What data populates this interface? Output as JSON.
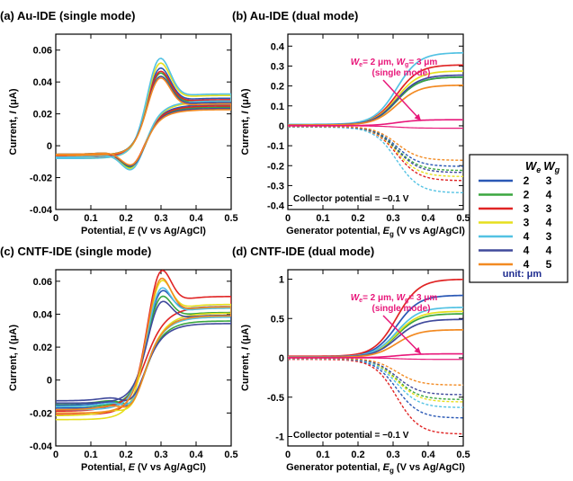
{
  "colors": {
    "series": [
      "#2a58b5",
      "#3aa63f",
      "#e02424",
      "#e6df1e",
      "#53c2e3",
      "#404a9c",
      "#f28a22"
    ],
    "single": "#e8177a",
    "annotation": "#e8177a",
    "unit": "#1d2b8f"
  },
  "legend": {
    "header_we": "W",
    "header_we_sub": "e",
    "header_wg": "W",
    "header_wg_sub": "g",
    "rows": [
      {
        "we": "2",
        "wg": "3"
      },
      {
        "we": "2",
        "wg": "4"
      },
      {
        "we": "3",
        "wg": "3"
      },
      {
        "we": "3",
        "wg": "4"
      },
      {
        "we": "4",
        "wg": "3"
      },
      {
        "we": "4",
        "wg": "4"
      },
      {
        "we": "4",
        "wg": "5"
      }
    ],
    "unit": "unit: μm"
  },
  "chart_data": [
    {
      "id": "a",
      "type": "line",
      "title": "(a) Au-IDE (single mode)",
      "xlabel_pre": "Potential, ",
      "xlabel_italic": "E",
      "xlabel_post": " (V vs Ag/AgCl)",
      "ylabel_pre": "Current, ",
      "ylabel_italic": "I",
      "ylabel_post": " (μA)",
      "xlim": [
        0,
        0.5
      ],
      "ylim": [
        -0.04,
        0.07
      ],
      "xticks": [
        0,
        0.1,
        0.2,
        0.3,
        0.4,
        0.5
      ],
      "xtick_labels": [
        "0",
        "0.1",
        "0.2",
        "0.3",
        "0.4",
        "0.5"
      ],
      "yticks": [
        -0.04,
        -0.02,
        0,
        0.02,
        0.04,
        0.06
      ],
      "ytick_labels": [
        "-0.04",
        "-0.02",
        "0",
        "0.02",
        "0.04",
        "0.06"
      ],
      "series": [
        {
          "color_index": 0,
          "ipa": 0.047,
          "ipc": -0.023,
          "base": -0.007,
          "end": 0.033
        },
        {
          "color_index": 1,
          "ipa": 0.044,
          "ipc": -0.022,
          "base": -0.006,
          "end": 0.031
        },
        {
          "color_index": 2,
          "ipa": 0.045,
          "ipc": -0.021,
          "base": -0.007,
          "end": 0.032
        },
        {
          "color_index": 3,
          "ipa": 0.05,
          "ipc": -0.024,
          "base": -0.008,
          "end": 0.035
        },
        {
          "color_index": 4,
          "ipa": 0.053,
          "ipc": -0.025,
          "base": -0.008,
          "end": 0.036
        },
        {
          "color_index": 5,
          "ipa": 0.042,
          "ipc": -0.021,
          "base": -0.006,
          "end": 0.03
        },
        {
          "color_index": 6,
          "ipa": 0.041,
          "ipc": -0.02,
          "base": -0.006,
          "end": 0.029
        }
      ]
    },
    {
      "id": "b",
      "type": "line",
      "title": "(b) Au-IDE (dual mode)",
      "xlabel_pre": "Generator potential, ",
      "xlabel_italic": "E",
      "xlabel_sub": "g",
      "xlabel_post": " (V vs Ag/AgCl)",
      "ylabel_pre": "Current, ",
      "ylabel_italic": "I",
      "ylabel_post": " (μA)",
      "xlim": [
        0,
        0.5
      ],
      "ylim": [
        -0.42,
        0.46
      ],
      "xticks": [
        0,
        0.1,
        0.2,
        0.3,
        0.4,
        0.5
      ],
      "xtick_labels": [
        "0",
        "0.1",
        "0.2",
        "0.3",
        "0.4",
        "0.5"
      ],
      "yticks": [
        -0.4,
        -0.3,
        -0.2,
        -0.1,
        0,
        0.1,
        0.2,
        0.3,
        0.4
      ],
      "ytick_labels": [
        "-0.4",
        "-0.3",
        "-0.2",
        "-0.1",
        "0",
        "0.1",
        "0.2",
        "0.3",
        "0.4"
      ],
      "note": "Collector potential = −0.1 V",
      "annotation": {
        "line1a": "W",
        "line1a_sub": "e",
        "line1b": "= 2 μm, ",
        "line1c": "W",
        "line1c_sub": "g",
        "line1d": "= 3 μm",
        "line2": "(single mode)"
      },
      "series": [
        {
          "color_index": 0,
          "gen": 0.24,
          "col": -0.2
        },
        {
          "color_index": 1,
          "gen": 0.24,
          "col": -0.22
        },
        {
          "color_index": 2,
          "gen": 0.3,
          "col": -0.27
        },
        {
          "color_index": 3,
          "gen": 0.27,
          "col": -0.25
        },
        {
          "color_index": 4,
          "gen": 0.36,
          "col": -0.33
        },
        {
          "color_index": 5,
          "gen": 0.25,
          "col": -0.23
        },
        {
          "color_index": 6,
          "gen": 0.2,
          "col": -0.17
        }
      ],
      "single_mode": {
        "color": "single",
        "gen": 0.03
      }
    },
    {
      "id": "c",
      "type": "line",
      "title": "(c) CNTF-IDE (single mode)",
      "xlabel_pre": "Potential, ",
      "xlabel_italic": "E",
      "xlabel_post": " (V vs Ag/AgCl)",
      "ylabel_pre": "Current, ",
      "ylabel_italic": "I",
      "ylabel_post": " (μA)",
      "xlim": [
        0,
        0.5
      ],
      "ylim": [
        -0.04,
        0.067
      ],
      "xticks": [
        0,
        0.1,
        0.2,
        0.3,
        0.4,
        0.5
      ],
      "xtick_labels": [
        "0",
        "0.1",
        "0.2",
        "0.3",
        "0.4",
        "0.5"
      ],
      "yticks": [
        -0.04,
        -0.02,
        0,
        0.02,
        0.04,
        0.06
      ],
      "ytick_labels": [
        "-0.04",
        "-0.02",
        "0",
        "0.02",
        "0.04",
        "0.06"
      ],
      "series": [
        {
          "color_index": 0,
          "ipa": 0.05,
          "ipc": -0.029,
          "base": -0.017,
          "end": 0.05
        },
        {
          "color_index": 1,
          "ipa": 0.047,
          "ipc": -0.027,
          "base": -0.016,
          "end": 0.046
        },
        {
          "color_index": 2,
          "ipa": 0.062,
          "ipc": -0.025,
          "base": -0.021,
          "end": 0.057
        },
        {
          "color_index": 3,
          "ipa": 0.056,
          "ipc": -0.032,
          "base": -0.024,
          "end": 0.052
        },
        {
          "color_index": 4,
          "ipa": 0.052,
          "ipc": -0.028,
          "base": -0.018,
          "end": 0.049
        },
        {
          "color_index": 5,
          "ipa": 0.044,
          "ipc": -0.024,
          "base": -0.014,
          "end": 0.044
        },
        {
          "color_index": 6,
          "ipa": 0.058,
          "ipc": -0.03,
          "base": -0.02,
          "end": 0.05
        }
      ]
    },
    {
      "id": "d",
      "type": "line",
      "title": "(d) CNTF-IDE (dual mode)",
      "xlabel_pre": "Generator potential, ",
      "xlabel_italic": "E",
      "xlabel_sub": "g",
      "xlabel_post": " (V vs Ag/AgCl)",
      "ylabel_pre": "Current, ",
      "ylabel_italic": "I",
      "ylabel_post": " (μA)",
      "xlim": [
        0,
        0.5
      ],
      "ylim": [
        -1.12,
        1.12
      ],
      "xticks": [
        0,
        0.1,
        0.2,
        0.3,
        0.4,
        0.5
      ],
      "xtick_labels": [
        "0",
        "0.1",
        "0.2",
        "0.3",
        "0.4",
        "0.5"
      ],
      "yticks": [
        -1,
        -0.5,
        0,
        0.5,
        1
      ],
      "ytick_labels": [
        "-1",
        "-0.5",
        "0",
        "0.5",
        "1"
      ],
      "note": "Collector potential = −0.1 V",
      "annotation": {
        "line1a": "W",
        "line1a_sub": "e",
        "line1b": "= 2 μm, ",
        "line1c": "W",
        "line1c_sub": "g",
        "line1d": "= 3 μm",
        "line2": "(single mode)"
      },
      "series": [
        {
          "color_index": 0,
          "gen": 0.78,
          "col": -0.75
        },
        {
          "color_index": 1,
          "gen": 0.55,
          "col": -0.52
        },
        {
          "color_index": 2,
          "gen": 0.98,
          "col": -0.95
        },
        {
          "color_index": 3,
          "gen": 0.58,
          "col": -0.55
        },
        {
          "color_index": 4,
          "gen": 0.63,
          "col": -0.62
        },
        {
          "color_index": 5,
          "gen": 0.48,
          "col": -0.46
        },
        {
          "color_index": 6,
          "gen": 0.35,
          "col": -0.34
        }
      ],
      "single_mode": {
        "color": "single",
        "gen": 0.05
      }
    }
  ]
}
